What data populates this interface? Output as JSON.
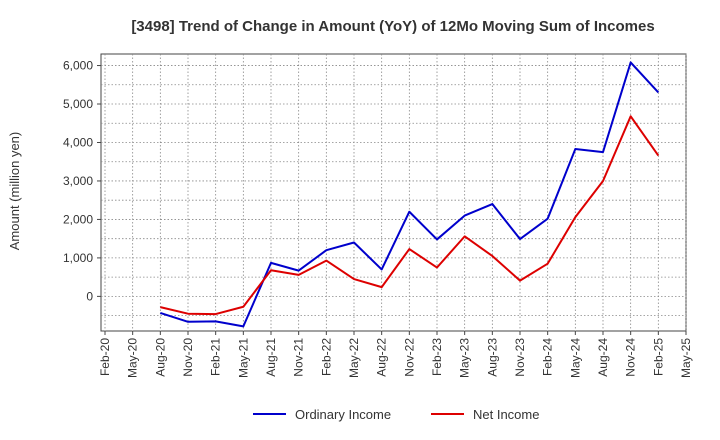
{
  "chart_data": {
    "type": "line",
    "title": "[3498]  Trend of Change in Amount (YoY) of 12Mo Moving Sum of Incomes",
    "xlabel": "",
    "ylabel": "Amount (million yen)",
    "ylim": [
      -900,
      6300
    ],
    "yticks": [
      0,
      1000,
      2000,
      3000,
      4000,
      5000,
      6000
    ],
    "ytick_labels": [
      "0",
      "1,000",
      "2,000",
      "3,000",
      "4,000",
      "5,000",
      "6,000"
    ],
    "categories": [
      "Feb-20",
      "May-20",
      "Aug-20",
      "Nov-20",
      "Feb-21",
      "May-21",
      "Aug-21",
      "Nov-21",
      "Feb-22",
      "May-22",
      "Aug-22",
      "Nov-22",
      "Feb-23",
      "May-23",
      "Aug-23",
      "Nov-23",
      "Feb-24",
      "May-24",
      "Aug-24",
      "Nov-24",
      "Feb-25",
      "May-25"
    ],
    "grid": true,
    "legend_position": "bottom",
    "series": [
      {
        "name": "Ordinary Income",
        "color": "#0000cc",
        "values": [
          null,
          null,
          -430,
          -660,
          -650,
          -780,
          870,
          670,
          1200,
          1400,
          700,
          2200,
          1480,
          2100,
          2400,
          1490,
          2020,
          3830,
          3750,
          6080,
          5300,
          null
        ]
      },
      {
        "name": "Net Income",
        "color": "#dd0000",
        "values": [
          null,
          null,
          -280,
          -450,
          -460,
          -270,
          680,
          560,
          930,
          450,
          240,
          1230,
          750,
          1560,
          1050,
          410,
          850,
          2060,
          3000,
          4680,
          3660,
          null
        ]
      }
    ]
  }
}
